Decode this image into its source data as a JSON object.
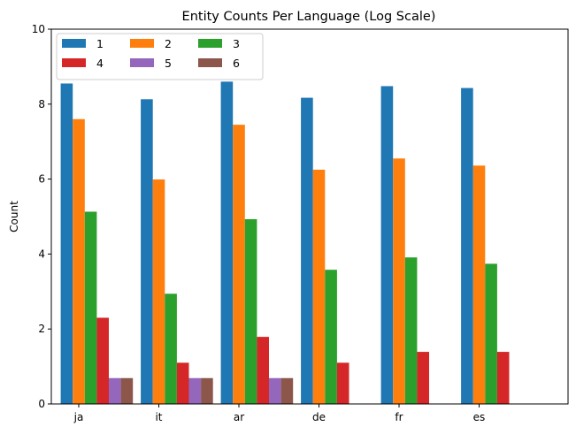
{
  "chart_data": {
    "type": "bar",
    "title": "Entity Counts Per Language (Log Scale)",
    "xlabel": "",
    "ylabel": "Count",
    "ylim": [
      0,
      10
    ],
    "yticks": [
      "0",
      "2",
      "4",
      "6",
      "8",
      "10"
    ],
    "categories": [
      "ja",
      "it",
      "ar",
      "de",
      "fr",
      "es"
    ],
    "series": [
      {
        "name": "1",
        "color": "#1f77b4",
        "values": [
          8.55,
          8.13,
          8.6,
          8.17,
          8.48,
          8.43
        ]
      },
      {
        "name": "2",
        "color": "#ff7f0e",
        "values": [
          7.6,
          5.99,
          7.45,
          6.25,
          6.55,
          6.36
        ]
      },
      {
        "name": "3",
        "color": "#2ca02c",
        "values": [
          5.13,
          2.94,
          4.93,
          3.58,
          3.91,
          3.74
        ]
      },
      {
        "name": "4",
        "color": "#d62728",
        "values": [
          2.3,
          1.1,
          1.79,
          1.1,
          1.39,
          1.39
        ]
      },
      {
        "name": "5",
        "color": "#9467bd",
        "values": [
          0.69,
          0.69,
          0.69,
          0,
          0,
          0
        ]
      },
      {
        "name": "6",
        "color": "#8c564b",
        "values": [
          0.69,
          0.69,
          0.69,
          0,
          0,
          0
        ]
      }
    ],
    "legend": {
      "position": "top-left",
      "columns": 3
    },
    "grid": false
  }
}
